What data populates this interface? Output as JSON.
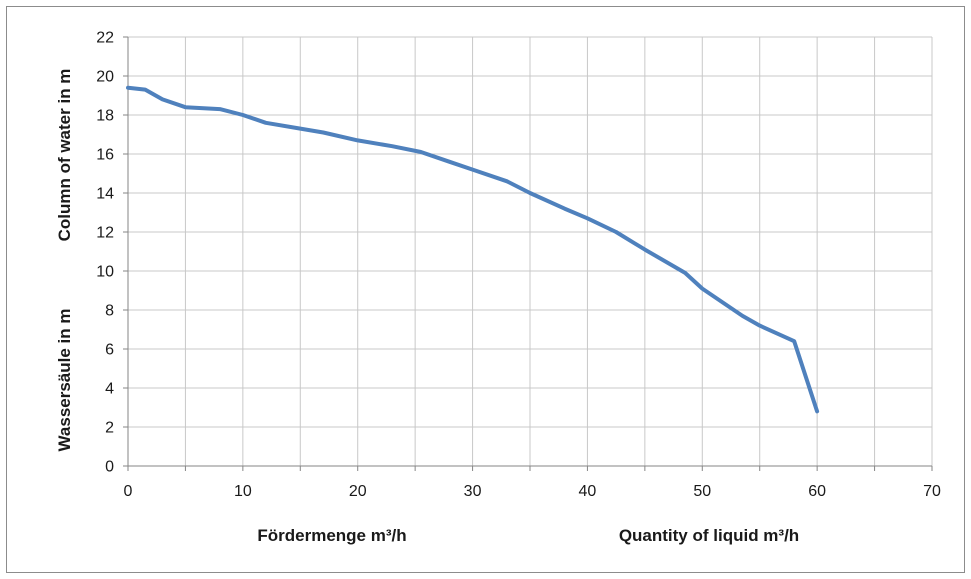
{
  "chart_data": {
    "type": "line",
    "title": "",
    "xlabel_de": "Fördermenge m³/h",
    "xlabel_en": "Quantity of liquid m³/h",
    "ylabel_de": "Wassersäule in m",
    "ylabel_en": "Column of water in m",
    "xlim": [
      0,
      70
    ],
    "ylim": [
      0,
      22
    ],
    "x_ticks": [
      0,
      10,
      20,
      30,
      40,
      50,
      60,
      70
    ],
    "y_ticks": [
      0,
      2,
      4,
      6,
      8,
      10,
      12,
      14,
      16,
      18,
      20,
      22
    ],
    "grid": true,
    "legend": "none",
    "series": [
      {
        "color": "#4f81bd",
        "x": [
          0,
          1.5,
          3,
          5,
          8,
          10,
          12,
          15,
          17,
          20,
          23,
          25.5,
          28,
          30,
          33,
          35,
          38,
          40,
          42.5,
          45,
          48.5,
          50,
          53.5,
          55,
          58,
          60
        ],
        "y": [
          19.4,
          19.3,
          18.8,
          18.4,
          18.3,
          18.0,
          17.6,
          17.3,
          17.1,
          16.7,
          16.4,
          16.1,
          15.6,
          15.2,
          14.6,
          14.0,
          13.2,
          12.7,
          12.0,
          11.1,
          9.9,
          9.1,
          7.7,
          7.2,
          6.4,
          2.8
        ]
      }
    ]
  }
}
